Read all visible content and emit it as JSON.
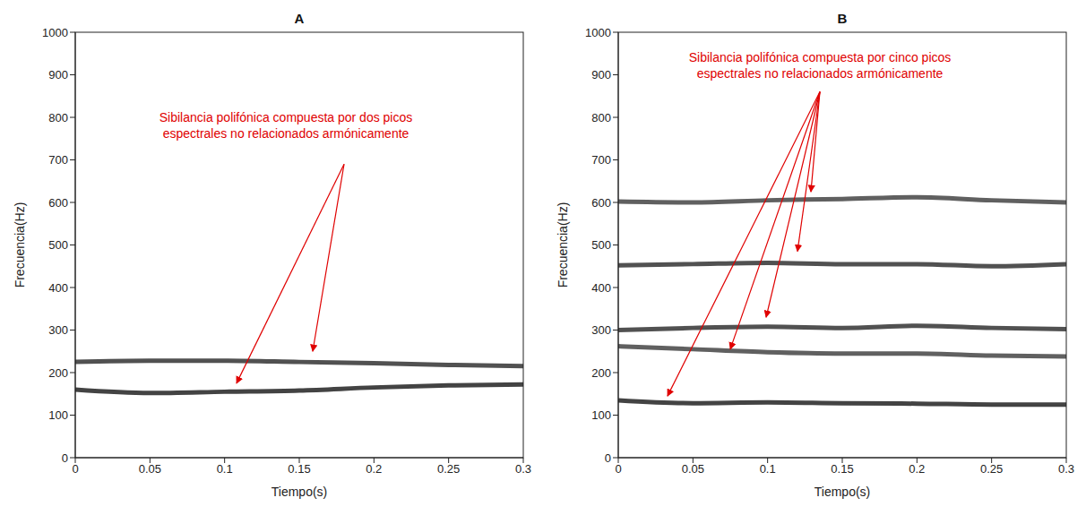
{
  "chart_data": [
    {
      "type": "line",
      "title": "A",
      "x_label": "Tiempo(s)",
      "y_label": "Frecuencia(Hz)",
      "annotation": [
        "Sibilancia polifónica compuesta por dos picos",
        "espectrales no relacionados armónicamente"
      ],
      "x": [
        0,
        0.05,
        0.1,
        0.15,
        0.2,
        0.25,
        0.3
      ],
      "series": [
        {
          "color": "#222222",
          "values": [
            160,
            152,
            155,
            158,
            165,
            170,
            172
          ]
        },
        {
          "color": "#333333",
          "values": [
            225,
            228,
            228,
            225,
            222,
            218,
            215
          ]
        }
      ],
      "xlim": [
        0,
        0.3
      ],
      "xticks": [
        0,
        0.05,
        0.1,
        0.15,
        0.2,
        0.25,
        0.3
      ],
      "ylim": [
        0,
        1000
      ],
      "yticks": [
        0,
        100,
        200,
        300,
        400,
        500,
        600,
        700,
        800,
        900,
        1000
      ],
      "grid": false
    },
    {
      "type": "line",
      "title": "B",
      "x_label": "Tiempo(s)",
      "y_label": "Frecuencia(Hz)",
      "annotation": [
        "Sibilancia polifónica compuesta por cinco picos",
        "espectrales no relacionados armónicamente"
      ],
      "x": [
        0,
        0.05,
        0.1,
        0.15,
        0.2,
        0.25,
        0.3
      ],
      "series": [
        {
          "color": "#222222",
          "values": [
            135,
            128,
            130,
            128,
            127,
            125,
            125
          ]
        },
        {
          "color": "#444444",
          "values": [
            262,
            255,
            248,
            245,
            245,
            240,
            238
          ]
        },
        {
          "color": "#333333",
          "values": [
            300,
            305,
            308,
            305,
            310,
            305,
            302
          ]
        },
        {
          "color": "#333333",
          "values": [
            452,
            455,
            458,
            455,
            455,
            450,
            455
          ]
        },
        {
          "color": "#444444",
          "values": [
            602,
            600,
            605,
            608,
            612,
            605,
            600
          ]
        }
      ],
      "xlim": [
        0,
        0.3
      ],
      "xticks": [
        0,
        0.05,
        0.1,
        0.15,
        0.2,
        0.25,
        0.3
      ],
      "ylim": [
        0,
        1000
      ],
      "yticks": [
        0,
        100,
        200,
        300,
        400,
        500,
        600,
        700,
        800,
        900,
        1000
      ],
      "grid": false
    }
  ]
}
